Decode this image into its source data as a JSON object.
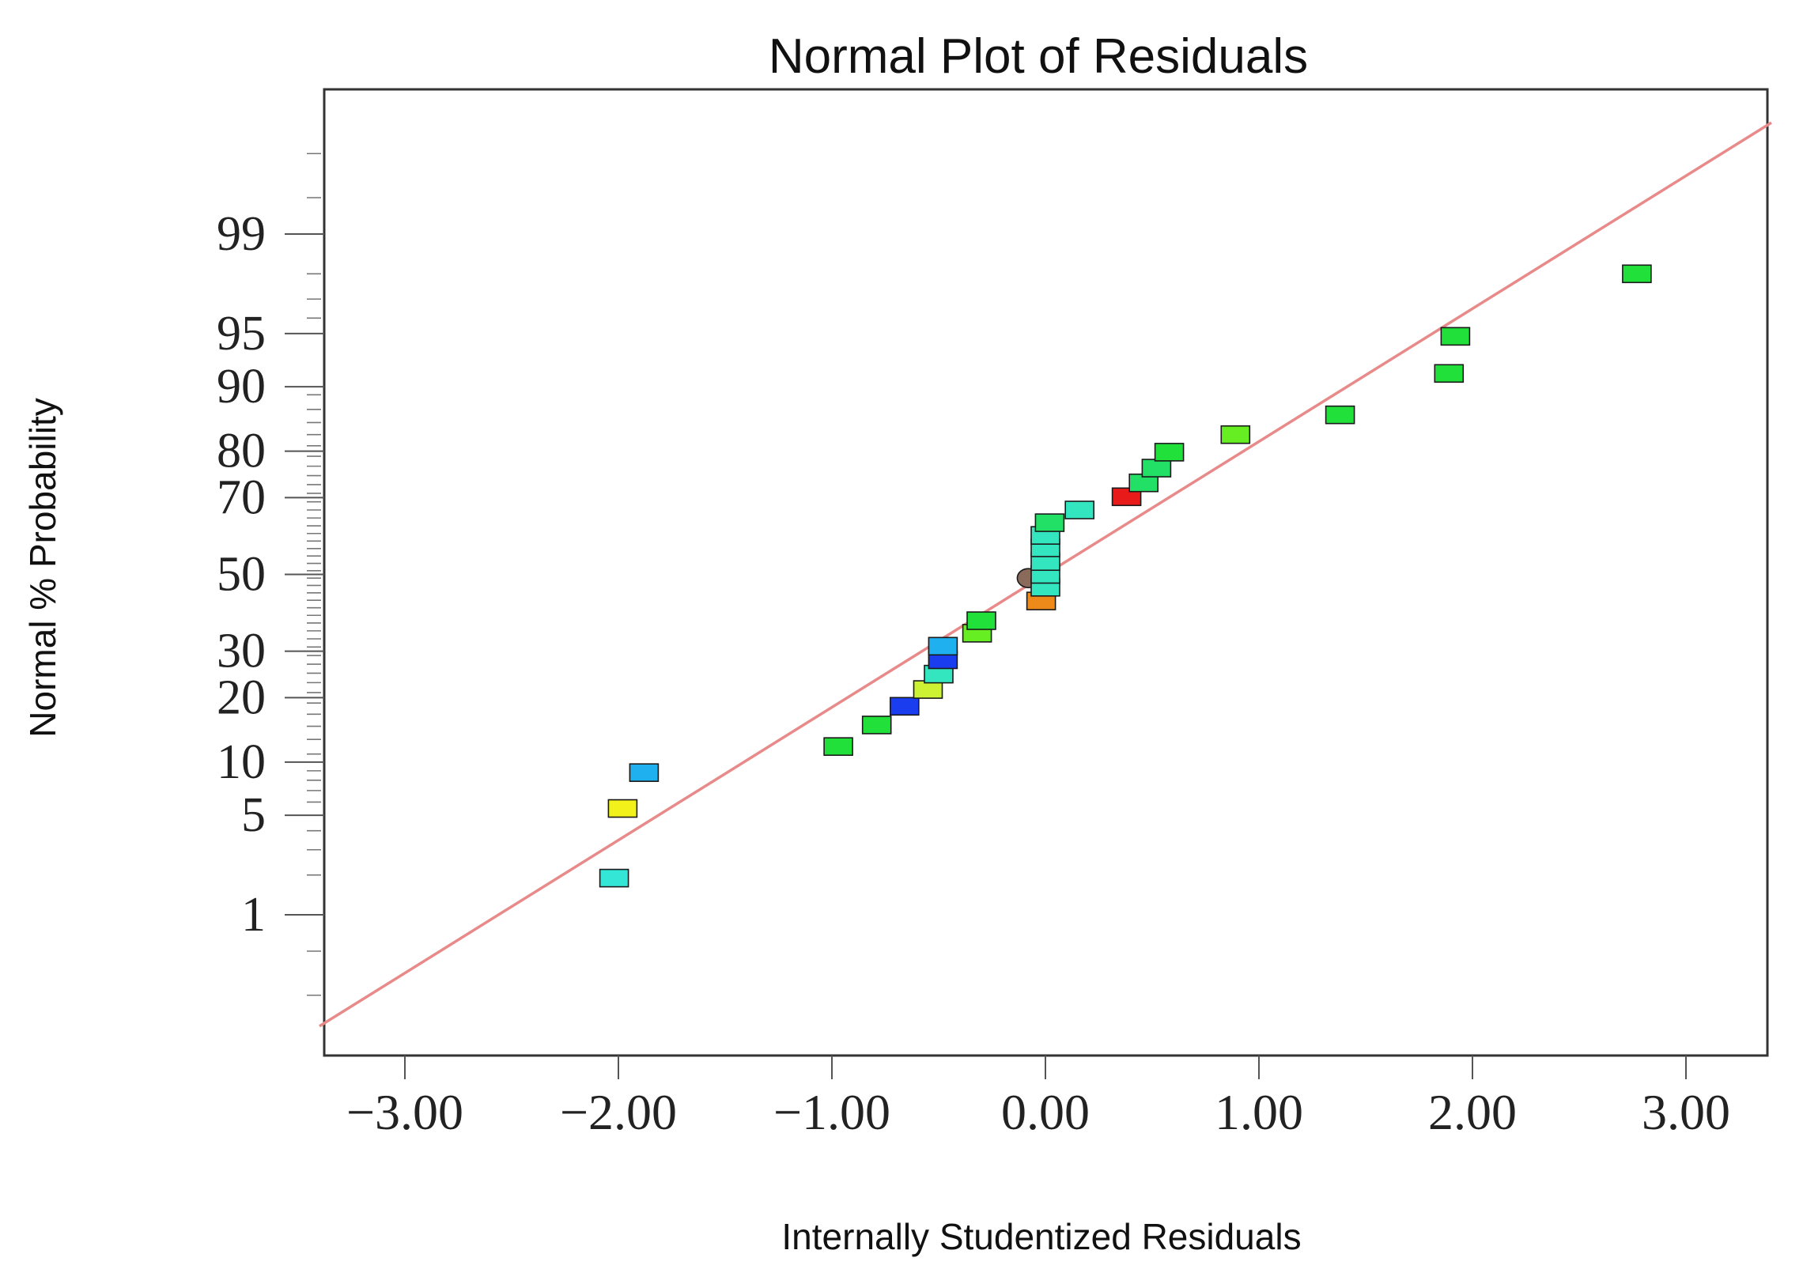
{
  "chart_data": {
    "type": "scatter",
    "title": "Normal Plot of Residuals",
    "xlabel": "Internally Studentized Residuals",
    "ylabel": "Normal % Probability",
    "xlim": [
      -3.4,
      3.4
    ],
    "x_ticks": [
      -3,
      -2,
      -1,
      0,
      1,
      2,
      3
    ],
    "x_tick_labels": [
      "-3.00",
      "-2.00",
      "-1.00",
      "0.00",
      "1.00",
      "2.00",
      "3.00"
    ],
    "y_scale": "normal-probability",
    "y_ticks": [
      1,
      5,
      10,
      20,
      30,
      50,
      70,
      80,
      90,
      95,
      99
    ],
    "y_tick_labels": [
      "1",
      "5",
      "10",
      "20",
      "30",
      "50",
      "70",
      "80",
      "90",
      "95",
      "99"
    ],
    "reference_line": {
      "x0": -3.4,
      "y0_prob": 0.1,
      "x1": 3.4,
      "y1_prob": 99.9,
      "color": "#e88a8a"
    },
    "points": [
      {
        "x": -2.02,
        "y": 1.9,
        "color": "#33e6d6"
      },
      {
        "x": -1.98,
        "y": 5.5,
        "color": "#f2f21a"
      },
      {
        "x": -1.88,
        "y": 8.8,
        "color": "#1fb0f0"
      },
      {
        "x": -0.97,
        "y": 12.0,
        "color": "#22e03a"
      },
      {
        "x": -0.79,
        "y": 15.2,
        "color": "#22e03a"
      },
      {
        "x": -0.66,
        "y": 18.4,
        "color": "#1a3df0"
      },
      {
        "x": -0.55,
        "y": 21.6,
        "color": "#ccf233"
      },
      {
        "x": -0.5,
        "y": 24.8,
        "color": "#33e6c0"
      },
      {
        "x": -0.48,
        "y": 28.0,
        "color": "#1a3df0"
      },
      {
        "x": -0.48,
        "y": 31.2,
        "color": "#1fb0f0"
      },
      {
        "x": -0.32,
        "y": 34.4,
        "color": "#66ee22"
      },
      {
        "x": -0.3,
        "y": 37.6,
        "color": "#22e03a"
      },
      {
        "x": -0.02,
        "y": 42.8,
        "color": "#ee8a1a"
      },
      {
        "x": -0.08,
        "y": 49.0,
        "color": "#8a6a5a",
        "shape": "circle"
      },
      {
        "x": 0.0,
        "y": 46.5,
        "color": "#33e6c0"
      },
      {
        "x": 0.0,
        "y": 50.0,
        "color": "#33e6c0"
      },
      {
        "x": 0.0,
        "y": 53.5,
        "color": "#33e6c0"
      },
      {
        "x": 0.0,
        "y": 57.2,
        "color": "#33e6c0"
      },
      {
        "x": 0.0,
        "y": 60.5,
        "color": "#33e6c0"
      },
      {
        "x": 0.02,
        "y": 63.8,
        "color": "#22e066"
      },
      {
        "x": 0.16,
        "y": 67.0,
        "color": "#33e6c0"
      },
      {
        "x": 0.38,
        "y": 70.2,
        "color": "#e81a1a"
      },
      {
        "x": 0.46,
        "y": 73.4,
        "color": "#22e066"
      },
      {
        "x": 0.52,
        "y": 76.6,
        "color": "#22e066"
      },
      {
        "x": 0.58,
        "y": 79.8,
        "color": "#22e03a"
      },
      {
        "x": 0.89,
        "y": 83.0,
        "color": "#66ee22"
      },
      {
        "x": 1.38,
        "y": 86.2,
        "color": "#22e03a"
      },
      {
        "x": 1.89,
        "y": 91.5,
        "color": "#22e03a"
      },
      {
        "x": 1.92,
        "y": 94.8,
        "color": "#22e03a"
      },
      {
        "x": 2.77,
        "y": 98.0,
        "color": "#22e03a"
      }
    ]
  }
}
